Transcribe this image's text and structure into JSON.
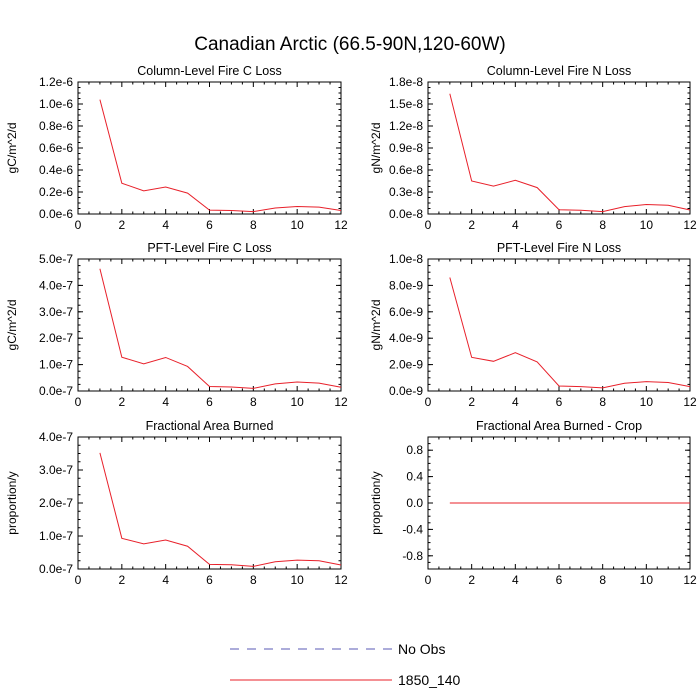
{
  "figure": {
    "title": "Canadian Arctic (66.5-90N,120-60W)",
    "legend": [
      {
        "label": "No Obs",
        "color": "#5a5ab4",
        "dash": true
      },
      {
        "label": "1850_140",
        "color": "#e8202a",
        "dash": false
      }
    ]
  },
  "chart_data": [
    {
      "type": "line",
      "title": "Column-Level Fire C Loss",
      "ylabel": "gC/m^2/d",
      "xlim": [
        0,
        12
      ],
      "xticks": [
        "0",
        "2",
        "4",
        "6",
        "8",
        "10",
        "12"
      ],
      "ylim": [
        0,
        1.2e-06
      ],
      "yticks": [
        {
          "v": 0,
          "l": "0.0e-6"
        },
        {
          "v": 2e-07,
          "l": "0.2e-6"
        },
        {
          "v": 4e-07,
          "l": "0.4e-6"
        },
        {
          "v": 6e-07,
          "l": "0.6e-6"
        },
        {
          "v": 8e-07,
          "l": "0.8e-6"
        },
        {
          "v": 1e-06,
          "l": "1.0e-6"
        },
        {
          "v": 1.2e-06,
          "l": "1.2e-6"
        }
      ],
      "series": [
        {
          "color": "#e8202a",
          "x": [
            1,
            2,
            3,
            4,
            5,
            6,
            7,
            8,
            9,
            10,
            11,
            12
          ],
          "y": [
            1.04e-06,
            2.8e-07,
            2.1e-07,
            2.45e-07,
            1.9e-07,
            3.5e-08,
            3.2e-08,
            2.2e-08,
            5.5e-08,
            6.8e-08,
            6.2e-08,
            3.2e-08
          ]
        }
      ]
    },
    {
      "type": "line",
      "title": "Column-Level Fire N Loss",
      "ylabel": "gN/m^2/d",
      "xlim": [
        0,
        12
      ],
      "xticks": [
        "0",
        "2",
        "4",
        "6",
        "8",
        "10",
        "12"
      ],
      "ylim": [
        0,
        1.8e-08
      ],
      "yticks": [
        {
          "v": 0,
          "l": "0.0e-8"
        },
        {
          "v": 3e-09,
          "l": "0.3e-8"
        },
        {
          "v": 6e-09,
          "l": "0.6e-8"
        },
        {
          "v": 9e-09,
          "l": "0.9e-8"
        },
        {
          "v": 1.2e-08,
          "l": "1.2e-8"
        },
        {
          "v": 1.5e-08,
          "l": "1.5e-8"
        },
        {
          "v": 1.8e-08,
          "l": "1.8e-8"
        }
      ],
      "series": [
        {
          "color": "#e8202a",
          "x": [
            1,
            2,
            3,
            4,
            5,
            6,
            7,
            8,
            9,
            10,
            11,
            12
          ],
          "y": [
            1.64e-08,
            4.5e-09,
            3.8e-09,
            4.6e-09,
            3.6e-09,
            5.8e-10,
            5.2e-10,
            3.2e-10,
            1e-09,
            1.3e-09,
            1.2e-09,
            5.5e-10
          ]
        }
      ]
    },
    {
      "type": "line",
      "title": "PFT-Level Fire C Loss",
      "ylabel": "gC/m^2/d",
      "xlim": [
        0,
        12
      ],
      "xticks": [
        "0",
        "2",
        "4",
        "6",
        "8",
        "10",
        "12"
      ],
      "ylim": [
        0,
        5e-07
      ],
      "yticks": [
        {
          "v": 0,
          "l": "0.0e-7"
        },
        {
          "v": 1e-07,
          "l": "1.0e-7"
        },
        {
          "v": 2e-07,
          "l": "2.0e-7"
        },
        {
          "v": 3e-07,
          "l": "3.0e-7"
        },
        {
          "v": 4e-07,
          "l": "4.0e-7"
        },
        {
          "v": 5e-07,
          "l": "5.0e-7"
        }
      ],
      "series": [
        {
          "color": "#e8202a",
          "x": [
            1,
            2,
            3,
            4,
            5,
            6,
            7,
            8,
            9,
            10,
            11,
            12
          ],
          "y": [
            4.63e-07,
            1.28e-07,
            1.03e-07,
            1.27e-07,
            9.3e-08,
            1.7e-08,
            1.5e-08,
            1e-08,
            2.7e-08,
            3.4e-08,
            3e-08,
            1.4e-08
          ]
        }
      ]
    },
    {
      "type": "line",
      "title": "PFT-Level Fire N Loss",
      "ylabel": "gN/m^2/d",
      "xlim": [
        0,
        12
      ],
      "xticks": [
        "0",
        "2",
        "4",
        "6",
        "8",
        "10",
        "12"
      ],
      "ylim": [
        0,
        1e-08
      ],
      "yticks": [
        {
          "v": 0,
          "l": "0.0e-9"
        },
        {
          "v": 2e-09,
          "l": "2.0e-9"
        },
        {
          "v": 4e-09,
          "l": "4.0e-9"
        },
        {
          "v": 6e-09,
          "l": "6.0e-9"
        },
        {
          "v": 8e-09,
          "l": "8.0e-9"
        },
        {
          "v": 1e-08,
          "l": "1.0e-8"
        }
      ],
      "series": [
        {
          "color": "#e8202a",
          "x": [
            1,
            2,
            3,
            4,
            5,
            6,
            7,
            8,
            9,
            10,
            11,
            12
          ],
          "y": [
            8.6e-09,
            2.55e-09,
            2.25e-09,
            2.9e-09,
            2.2e-09,
            3.8e-10,
            3.3e-10,
            2.4e-10,
            5.9e-10,
            7.1e-10,
            6.4e-10,
            3.3e-10
          ]
        }
      ]
    },
    {
      "type": "line",
      "title": "Fractional Area Burned",
      "ylabel": "proportion/y",
      "xlim": [
        0,
        12
      ],
      "xticks": [
        "0",
        "2",
        "4",
        "6",
        "8",
        "10",
        "12"
      ],
      "ylim": [
        0,
        4e-07
      ],
      "yticks": [
        {
          "v": 0,
          "l": "0.0e-7"
        },
        {
          "v": 1e-07,
          "l": "1.0e-7"
        },
        {
          "v": 2e-07,
          "l": "2.0e-7"
        },
        {
          "v": 3e-07,
          "l": "3.0e-7"
        },
        {
          "v": 4e-07,
          "l": "4.0e-7"
        }
      ],
      "series": [
        {
          "color": "#e8202a",
          "x": [
            1,
            2,
            3,
            4,
            5,
            6,
            7,
            8,
            9,
            10,
            11,
            12
          ],
          "y": [
            3.52e-07,
            9.3e-08,
            7.6e-08,
            8.8e-08,
            6.9e-08,
            1.4e-08,
            1.3e-08,
            8e-09,
            2.2e-08,
            2.7e-08,
            2.5e-08,
            1.2e-08
          ]
        }
      ]
    },
    {
      "type": "line",
      "title": "Fractional Area Burned - Crop",
      "ylabel": "proportion/y",
      "xlim": [
        0,
        12
      ],
      "xticks": [
        "0",
        "2",
        "4",
        "6",
        "8",
        "10",
        "12"
      ],
      "ylim": [
        -1.0,
        1.0
      ],
      "yticks": [
        {
          "v": -0.8,
          "l": "-0.8"
        },
        {
          "v": -0.4,
          "l": "-0.4"
        },
        {
          "v": 0,
          "l": "0.0"
        },
        {
          "v": 0.4,
          "l": "0.4"
        },
        {
          "v": 0.8,
          "l": "0.8"
        }
      ],
      "series": [
        {
          "color": "#e8202a",
          "x": [
            1,
            2,
            3,
            4,
            5,
            6,
            7,
            8,
            9,
            10,
            11,
            12
          ],
          "y": [
            0,
            0,
            0,
            0,
            0,
            0,
            0,
            0,
            0,
            0,
            0,
            0
          ]
        }
      ]
    }
  ]
}
